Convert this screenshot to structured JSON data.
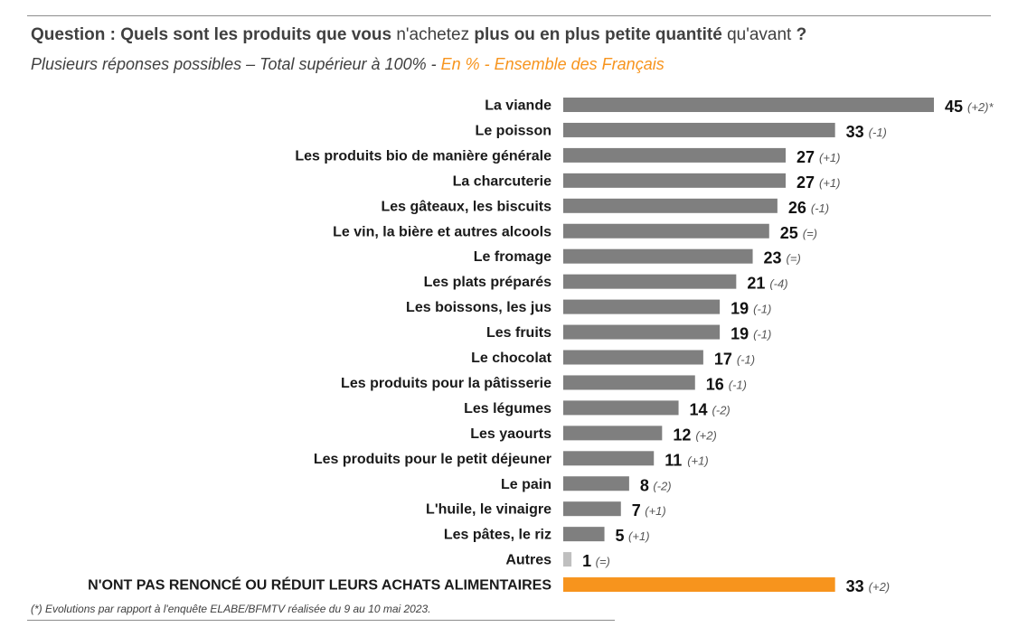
{
  "header": {
    "title_part1": "Question : Quels sont les produits que vous ",
    "title_part2": "n'achetez",
    "title_part3": " plus ou en plus petite quantité ",
    "title_part4": "qu'avant",
    "title_part5": " ?",
    "subtitle_main": "Plusieurs réponses possibles – Total supérieur à 100%  - ",
    "subtitle_accent": "En % - Ensemble des Français"
  },
  "footnote": "(*) Evolutions par rapport à l'enquête ELABE/BFMTV réalisée du 9 au 10 mai 2023.",
  "colors": {
    "bar": "#7f7f7f",
    "bar_light": "#bfbfbf",
    "highlight": "#F7941D",
    "accent_text": "#F7941D"
  },
  "chart_data": {
    "type": "bar",
    "orientation": "horizontal",
    "xlim": [
      0,
      45
    ],
    "categories": [
      "La viande",
      "Le poisson",
      "Les produits bio de manière générale",
      "La charcuterie",
      "Les gâteaux, les biscuits",
      "Le vin, la bière et autres alcools",
      "Le fromage",
      "Les plats préparés",
      "Les boissons, les jus",
      "Les fruits",
      "Le chocolat",
      "Les produits pour la pâtisserie",
      "Les légumes",
      "Les yaourts",
      "Les produits pour le petit déjeuner",
      "Le pain",
      "L'huile, le vinaigre",
      "Les pâtes, le riz",
      "Autres",
      "N'ONT PAS RENONCÉ OU RÉDUIT LEURS ACHATS ALIMENTAIRES"
    ],
    "values": [
      45,
      33,
      27,
      27,
      26,
      25,
      23,
      21,
      19,
      19,
      17,
      16,
      14,
      12,
      11,
      8,
      7,
      5,
      1,
      33
    ],
    "evolutions": [
      "(+2)*",
      "(-1)",
      "(+1)",
      "(+1)",
      "(-1)",
      "(=)",
      "(=)",
      "(-4)",
      "(-1)",
      "(-1)",
      "(-1)",
      "(-1)",
      "(-2)",
      "(+2)",
      "(+1)",
      "(-2)",
      "(+1)",
      "(+1)",
      "(=)",
      "(+2)"
    ],
    "grid": false,
    "legend": "none"
  }
}
